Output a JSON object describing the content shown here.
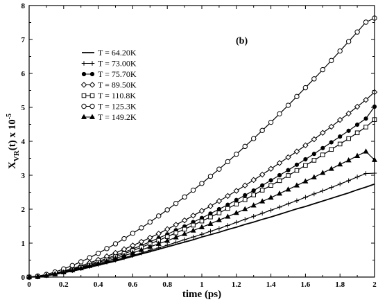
{
  "chart_data": {
    "type": "line",
    "panel_label": "(b)",
    "xlabel": "time (ps)",
    "ylabel_main": "X",
    "ylabel_sub": "VR",
    "ylabel_tail": "(t)  x 10",
    "ylabel_exp": "-5",
    "xlim": [
      0,
      2
    ],
    "ylim": [
      0,
      8
    ],
    "x_ticks": [
      "0",
      "0.2",
      "0.4",
      "0.6",
      "0.8",
      "1",
      "1.2",
      "1.4",
      "1.6",
      "1.8",
      "2"
    ],
    "y_ticks": [
      "0",
      "1",
      "2",
      "3",
      "4",
      "5",
      "6",
      "7",
      "8"
    ],
    "grid": false,
    "legend_position": "upper-left",
    "x": [
      0,
      0.05,
      0.1,
      0.15,
      0.2,
      0.25,
      0.3,
      0.35,
      0.4,
      0.45,
      0.5,
      0.55,
      0.6,
      0.65,
      0.7,
      0.75,
      0.8,
      0.85,
      0.9,
      0.95,
      1.0,
      1.05,
      1.1,
      1.15,
      1.2,
      1.25,
      1.3,
      1.35,
      1.4,
      1.45,
      1.5,
      1.55,
      1.6,
      1.65,
      1.7,
      1.75,
      1.8,
      1.85,
      1.9,
      1.95,
      2.0
    ],
    "series": [
      {
        "name": "T = 64.20K",
        "marker": "none",
        "values": [
          0,
          0.01,
          0.04,
          0.08,
          0.13,
          0.18,
          0.23,
          0.29,
          0.35,
          0.41,
          0.47,
          0.54,
          0.61,
          0.68,
          0.75,
          0.82,
          0.89,
          0.96,
          1.03,
          1.1,
          1.18,
          1.25,
          1.32,
          1.4,
          1.47,
          1.55,
          1.62,
          1.7,
          1.77,
          1.85,
          1.93,
          2.01,
          2.08,
          2.16,
          2.24,
          2.32,
          2.4,
          2.48,
          2.57,
          2.65,
          2.74
        ]
      },
      {
        "name": "T = 73.00K",
        "marker": "plus",
        "values": [
          0,
          0.01,
          0.04,
          0.09,
          0.14,
          0.19,
          0.25,
          0.31,
          0.37,
          0.44,
          0.5,
          0.57,
          0.64,
          0.71,
          0.79,
          0.86,
          0.94,
          1.02,
          1.1,
          1.18,
          1.26,
          1.35,
          1.43,
          1.52,
          1.61,
          1.7,
          1.79,
          1.88,
          1.97,
          2.06,
          2.16,
          2.25,
          2.35,
          2.45,
          2.54,
          2.64,
          2.74,
          2.84,
          2.95,
          3.05,
          3.06
        ]
      },
      {
        "name": "T = 75.70K",
        "marker": "filled-circle",
        "values": [
          0,
          0.02,
          0.05,
          0.1,
          0.16,
          0.23,
          0.3,
          0.38,
          0.46,
          0.55,
          0.64,
          0.73,
          0.83,
          0.93,
          1.04,
          1.15,
          1.26,
          1.38,
          1.49,
          1.62,
          1.74,
          1.87,
          2.0,
          2.13,
          2.27,
          2.41,
          2.55,
          2.7,
          2.85,
          3.0,
          3.15,
          3.31,
          3.47,
          3.63,
          3.8,
          3.97,
          4.14,
          4.31,
          4.49,
          4.67,
          5.02
        ]
      },
      {
        "name": "T = 89.50K",
        "marker": "diamond",
        "values": [
          0,
          0.02,
          0.06,
          0.11,
          0.18,
          0.25,
          0.33,
          0.42,
          0.51,
          0.61,
          0.71,
          0.82,
          0.93,
          1.04,
          1.16,
          1.28,
          1.41,
          1.54,
          1.67,
          1.81,
          1.95,
          2.09,
          2.24,
          2.39,
          2.54,
          2.7,
          2.86,
          3.02,
          3.19,
          3.36,
          3.53,
          3.7,
          3.88,
          4.06,
          4.25,
          4.43,
          4.63,
          4.82,
          5.02,
          5.22,
          5.45
        ]
      },
      {
        "name": "T = 110.8K",
        "marker": "square",
        "values": [
          0,
          0.01,
          0.05,
          0.09,
          0.15,
          0.21,
          0.28,
          0.35,
          0.43,
          0.51,
          0.6,
          0.69,
          0.78,
          0.88,
          0.98,
          1.08,
          1.19,
          1.3,
          1.41,
          1.53,
          1.65,
          1.77,
          1.89,
          2.02,
          2.15,
          2.28,
          2.42,
          2.56,
          2.7,
          2.84,
          2.99,
          3.14,
          3.29,
          3.44,
          3.6,
          3.76,
          3.92,
          4.08,
          4.25,
          4.42,
          4.64
        ]
      },
      {
        "name": "T = 125.3K",
        "marker": "circle",
        "values": [
          0,
          0.03,
          0.08,
          0.15,
          0.24,
          0.34,
          0.45,
          0.57,
          0.7,
          0.84,
          0.98,
          1.13,
          1.29,
          1.45,
          1.62,
          1.8,
          1.98,
          2.17,
          2.36,
          2.56,
          2.76,
          2.97,
          3.18,
          3.4,
          3.62,
          3.85,
          4.08,
          4.32,
          4.56,
          4.81,
          5.06,
          5.32,
          5.58,
          5.84,
          6.11,
          6.38,
          6.66,
          6.94,
          7.22,
          7.51,
          7.63
        ]
      },
      {
        "name": "T = 149.2K",
        "marker": "triangle",
        "values": [
          0,
          0.02,
          0.05,
          0.09,
          0.14,
          0.2,
          0.26,
          0.33,
          0.4,
          0.47,
          0.55,
          0.63,
          0.71,
          0.8,
          0.89,
          0.98,
          1.07,
          1.17,
          1.27,
          1.37,
          1.47,
          1.57,
          1.68,
          1.78,
          1.89,
          2.0,
          2.11,
          2.23,
          2.34,
          2.46,
          2.58,
          2.7,
          2.82,
          2.94,
          3.07,
          3.19,
          3.32,
          3.44,
          3.57,
          3.7,
          3.45
        ]
      }
    ]
  }
}
